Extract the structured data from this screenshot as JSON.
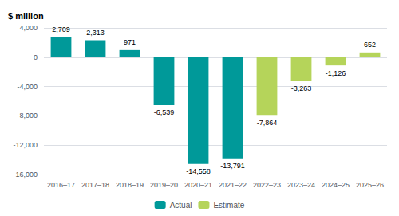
{
  "chart_data": {
    "type": "bar",
    "ylabel": "$ million",
    "categories": [
      "2016–17",
      "2017–18",
      "2018–19",
      "2019–20",
      "2020–21",
      "2021–22",
      "2022–23",
      "2023–24",
      "2024–25",
      "2025–26"
    ],
    "series": [
      {
        "name": "Actual",
        "color": "#009999",
        "values": [
          2709,
          2313,
          971,
          -6539,
          -14558,
          -13791,
          null,
          null,
          null,
          null
        ],
        "value_labels": [
          "2,709",
          "2,313",
          "971",
          "-6,539",
          "-14,558",
          "-13,791",
          null,
          null,
          null,
          null
        ]
      },
      {
        "name": "Estimate",
        "color": "#b5d45a",
        "values": [
          null,
          null,
          null,
          null,
          null,
          null,
          -7864,
          -3263,
          -1126,
          652
        ],
        "value_labels": [
          null,
          null,
          null,
          null,
          null,
          null,
          "-7,864",
          "-3,263",
          "-1,126",
          "652"
        ]
      }
    ],
    "ylim": [
      -16000,
      4000
    ],
    "yticks": [
      {
        "value": -16000,
        "label": "-16,000"
      },
      {
        "value": -12000,
        "label": "-12,000"
      },
      {
        "value": -8000,
        "label": "-8,000"
      },
      {
        "value": -4000,
        "label": "-4,000"
      },
      0,
      {
        "value": 4000,
        "label": "4,000"
      }
    ],
    "grid": true,
    "legend": "bottom",
    "data_labels": true
  }
}
